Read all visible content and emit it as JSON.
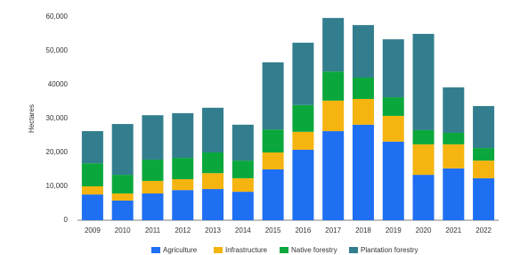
{
  "chart_data": {
    "type": "stacked-bar",
    "y_label": "Hectares",
    "categories": [
      "2009",
      "2010",
      "2011",
      "2012",
      "2013",
      "2014",
      "2015",
      "2016",
      "2017",
      "2018",
      "2019",
      "2020",
      "2021",
      "2022"
    ],
    "series": [
      {
        "name": "Agriculture",
        "color": "#1f6ff2",
        "values": [
          7600,
          5800,
          7900,
          8900,
          9200,
          8400,
          15000,
          20800,
          26300,
          28200,
          23200,
          13400,
          15300,
          12400
        ]
      },
      {
        "name": "Infrastructure",
        "color": "#f5b40f",
        "values": [
          2400,
          2100,
          3700,
          3200,
          4700,
          4000,
          5000,
          5300,
          9000,
          7600,
          7600,
          9000,
          7100,
          5200
        ]
      },
      {
        "name": "Native forestry",
        "color": "#0aa83c",
        "values": [
          6800,
          5500,
          6300,
          6300,
          6100,
          5200,
          6800,
          7900,
          8600,
          6300,
          5500,
          4200,
          3400,
          3700
        ]
      },
      {
        "name": "Plantation forestry",
        "color": "#337e8e",
        "values": [
          9500,
          15000,
          13100,
          13200,
          13200,
          10600,
          19800,
          18400,
          15800,
          15500,
          17100,
          28400,
          13400,
          12400
        ]
      }
    ],
    "ylim": [
      0,
      60000
    ],
    "yticks": [
      0,
      {
        "value": 10000,
        "label": "10,000"
      },
      {
        "value": 20000,
        "label": "20,000"
      },
      {
        "value": 30000,
        "label": "30,000"
      },
      40000,
      {
        "value": 50000,
        "label": "50,000"
      },
      {
        "value": 60000,
        "label": "60,000"
      }
    ],
    "grid": false,
    "legend": "bottom"
  }
}
